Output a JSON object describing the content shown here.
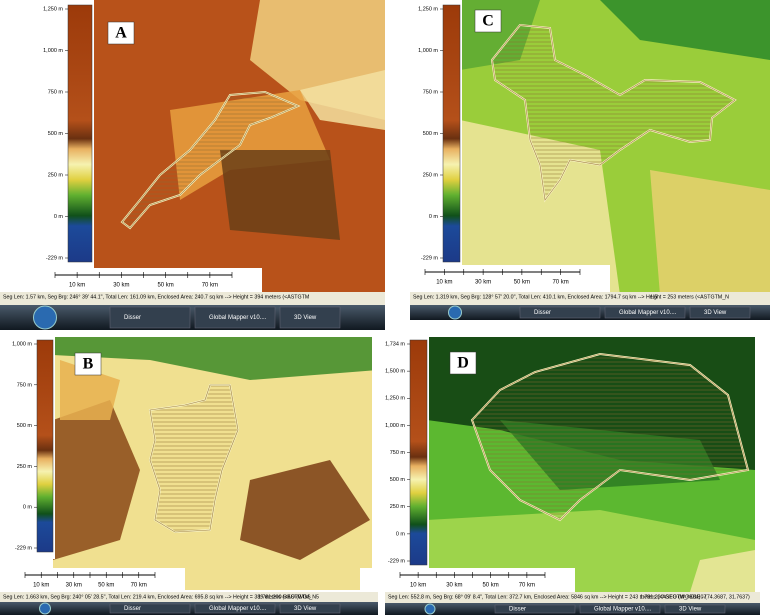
{
  "panels": [
    {
      "letter": "A",
      "colorbar_ticks": [
        "1,250 m",
        "1,000 m",
        "750 m",
        "500 m",
        "250 m",
        "0 m",
        "-229 m"
      ],
      "scale_labels": [
        "10 km",
        "30 km",
        "50 km",
        "70 km"
      ],
      "status": [
        "Seg Len: 1.57 km, Seg Brg: 246° 39' 44.1\", Total Len: 161.09 km, Enclosed Area: 240.7 sq km --> Height = 394 meters (<ASTGTM"
      ],
      "taskbar": [
        "Disser",
        "Global Mapper v10....",
        "3D View"
      ]
    },
    {
      "letter": "C",
      "colorbar_ticks": [
        "1,250 m",
        "1,000 m",
        "750 m",
        "500 m",
        "250 m",
        "0 m",
        "-229 m"
      ],
      "scale_labels": [
        "10 km",
        "30 km",
        "50 km",
        "70 km"
      ],
      "status": [
        "Seg Len: 1.319 km, Seg Brg: 128° 57' 20.0\", Total Len: 410.1 km, Enclosed Area: 1794.7 sq km --> Height = 253 meters (<ASTGTM_N",
        "1:5"
      ],
      "taskbar": [
        "Disser",
        "Global Mapper v10....",
        "3D View"
      ]
    },
    {
      "letter": "B",
      "colorbar_ticks": [
        "1,000 m",
        "750 m",
        "500 m",
        "250 m",
        "0 m",
        "-229 m"
      ],
      "scale_labels": [
        "10 km",
        "30 km",
        "50 km",
        "70 km"
      ],
      "status": [
        "Seg Len: 1.663 km, Seg Brg: 240° 05' 28.5\", Total Len: 219.4 km, Enclosed Area: 695.8 sq km --> Height = 389 meters (<ASTGTM_N5",
        "1:781,200  GEO (WGS"
      ],
      "taskbar": [
        "Disser",
        "Global Mapper v10....",
        "3D View"
      ]
    },
    {
      "letter": "D",
      "colorbar_ticks": [
        "1,734 m",
        "1,500 m",
        "1,250 m",
        "1,000 m",
        "750 m",
        "500 m",
        "250 m",
        "0 m",
        "-229 m"
      ],
      "scale_labels": [
        "10 km",
        "30 km",
        "50 km",
        "70 km"
      ],
      "status": [
        "Seg Len: 552.8 m, Seg Brg: 68° 09' 8.4\", Total Len: 372.7 km, Enclosed Area: 5846 sq km --> Height = 243 meters (<ASTGTM_N01E07",
        "1:781,200  GEO (WGS84) - (74.3687, 31.7637)"
      ],
      "taskbar": [
        "Disser",
        "Global Mapper v10....",
        "3D View"
      ]
    }
  ]
}
